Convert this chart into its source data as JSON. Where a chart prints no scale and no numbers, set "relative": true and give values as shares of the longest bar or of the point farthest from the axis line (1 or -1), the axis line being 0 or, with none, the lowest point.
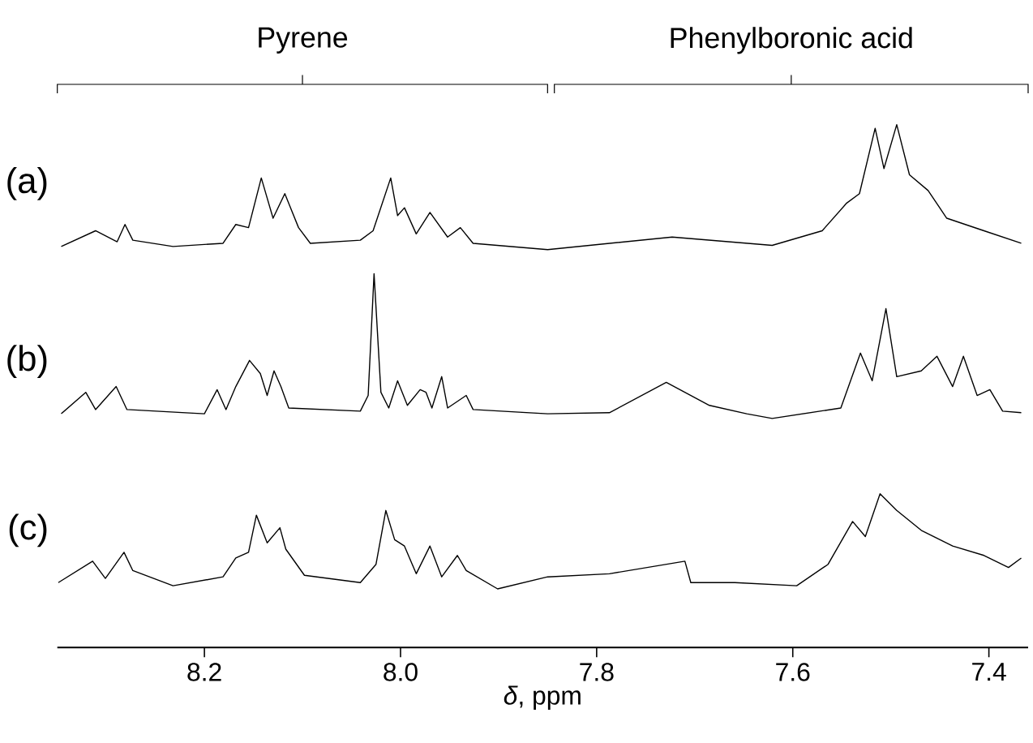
{
  "chart_data": {
    "type": "line",
    "relative": true,
    "xlim": [
      8.35,
      7.36
    ],
    "xticks": [
      8.2,
      {
        "value": 8.0,
        "label": "8.0"
      },
      7.8,
      7.6,
      7.4
    ],
    "xlabel": "*δ*, ppm",
    "tick_labels": "x",
    "annotations": [
      "Pyrene",
      "Phenylboronic acid"
    ],
    "series": [
      {
        "name": "(a)",
        "color": "#000000",
        "x": [
          8.346,
          8.311,
          8.289,
          8.281,
          8.273,
          8.232,
          8.181,
          8.168,
          8.155,
          8.142,
          8.13,
          8.118,
          8.104,
          8.092,
          8.041,
          8.028,
          8.01,
          8.003,
          7.996,
          7.984,
          7.97,
          7.952,
          7.939,
          7.926,
          7.85,
          7.723,
          7.621,
          7.57,
          7.545,
          7.532,
          7.516,
          7.507,
          7.494,
          7.481,
          7.462,
          7.443,
          7.405,
          7.367
        ],
        "values": [
          0.767,
          0.797,
          0.776,
          0.809,
          0.779,
          0.767,
          0.773,
          0.809,
          0.803,
          0.898,
          0.821,
          0.868,
          0.803,
          0.773,
          0.779,
          0.797,
          0.898,
          0.826,
          0.841,
          0.791,
          0.832,
          0.785,
          0.803,
          0.773,
          0.761,
          0.785,
          0.769,
          0.797,
          0.85,
          0.868,
          0.993,
          0.916,
          1.0,
          0.904,
          0.874,
          0.821,
          0.797,
          0.773
        ]
      },
      {
        "name": "(b)",
        "color": "#000000",
        "x": [
          8.346,
          8.321,
          8.311,
          8.29,
          8.279,
          8.2,
          8.187,
          8.178,
          8.168,
          8.154,
          8.143,
          8.136,
          8.129,
          8.122,
          8.114,
          8.041,
          8.033,
          8.027,
          8.02,
          8.012,
          8.003,
          7.993,
          7.98,
          7.974,
          7.968,
          7.958,
          7.952,
          7.933,
          7.926,
          7.85,
          7.787,
          7.729,
          7.685,
          7.647,
          7.621,
          7.551,
          7.531,
          7.519,
          7.505,
          7.494,
          7.469,
          7.453,
          7.437,
          7.426,
          7.412,
          7.399,
          7.386,
          7.367
        ],
        "values": [
          0.447,
          0.488,
          0.455,
          0.499,
          0.455,
          0.447,
          0.493,
          0.455,
          0.499,
          0.549,
          0.524,
          0.482,
          0.529,
          0.499,
          0.458,
          0.452,
          0.482,
          0.715,
          0.488,
          0.458,
          0.51,
          0.463,
          0.493,
          0.488,
          0.458,
          0.518,
          0.458,
          0.482,
          0.455,
          0.447,
          0.449,
          0.507,
          0.463,
          0.447,
          0.438,
          0.458,
          0.563,
          0.51,
          0.648,
          0.518,
          0.529,
          0.557,
          0.499,
          0.557,
          0.482,
          0.493,
          0.452,
          0.449
        ]
      },
      {
        "name": "(c)",
        "color": "#000000",
        "x": [
          8.349,
          8.314,
          8.301,
          8.282,
          8.273,
          8.232,
          8.181,
          8.168,
          8.155,
          8.147,
          8.136,
          8.123,
          8.117,
          8.098,
          8.041,
          8.025,
          8.015,
          8.006,
          7.996,
          7.984,
          7.97,
          7.958,
          7.942,
          7.933,
          7.901,
          7.85,
          7.787,
          7.71,
          7.704,
          7.659,
          7.596,
          7.564,
          7.539,
          7.526,
          7.511,
          7.494,
          7.469,
          7.437,
          7.405,
          7.38,
          7.367
        ],
        "values": [
          0.124,
          0.165,
          0.132,
          0.182,
          0.147,
          0.118,
          0.135,
          0.171,
          0.182,
          0.253,
          0.2,
          0.229,
          0.188,
          0.138,
          0.124,
          0.159,
          0.262,
          0.206,
          0.194,
          0.141,
          0.194,
          0.135,
          0.176,
          0.147,
          0.112,
          0.135,
          0.141,
          0.165,
          0.124,
          0.124,
          0.118,
          0.159,
          0.241,
          0.212,
          0.294,
          0.262,
          0.224,
          0.194,
          0.176,
          0.153,
          0.171
        ]
      }
    ]
  }
}
